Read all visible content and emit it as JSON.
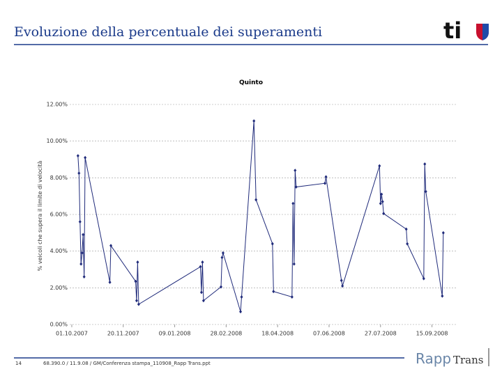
{
  "slide": {
    "title": "Evoluzione della percentuale dei superamenti",
    "logo": "ti",
    "page_number": "14",
    "footer": "68.390.0 / 11.9.08 / GM/Conferenza stampa_110908_Rapp Trans.ppt",
    "brand": [
      "Rapp",
      "Trans"
    ]
  },
  "chart_data": {
    "type": "line",
    "title": "Quinto",
    "y_label": "% veicoli che supera il limite di velocità",
    "x": [
      "2007-10-07",
      "2007-10-08",
      "2007-10-09",
      "2007-10-10",
      "2007-10-11",
      "2007-10-12",
      "2007-10-13",
      "2007-10-14",
      "2007-11-07",
      "2007-11-08",
      "2007-12-02",
      "2007-12-03",
      "2007-12-04",
      "2007-12-05",
      "2008-02-03",
      "2008-02-04",
      "2008-02-05",
      "2008-02-06",
      "2008-02-23",
      "2008-02-24",
      "2008-02-25",
      "2008-03-13",
      "2008-03-14",
      "2008-03-26",
      "2008-03-28",
      "2008-04-13",
      "2008-04-14",
      "2008-05-02",
      "2008-05-03",
      "2008-05-04",
      "2008-05-05",
      "2008-05-06",
      "2008-06-03",
      "2008-06-04",
      "2008-06-19",
      "2008-06-20",
      "2008-07-26",
      "2008-07-27",
      "2008-07-28",
      "2008-07-29",
      "2008-07-30",
      "2008-08-21",
      "2008-08-22",
      "2008-09-07",
      "2008-09-08",
      "2008-09-09",
      "2008-09-25",
      "2008-09-26"
    ],
    "series": [
      {
        "name": "Quinto",
        "color": "#1f2a7a",
        "values": [
          9.2,
          8.25,
          5.6,
          3.3,
          3.9,
          4.9,
          2.6,
          9.1,
          2.3,
          4.3,
          2.35,
          1.3,
          3.4,
          1.1,
          3.15,
          1.75,
          3.4,
          1.3,
          2.05,
          3.65,
          3.9,
          0.7,
          1.5,
          11.1,
          6.8,
          4.4,
          1.8,
          1.5,
          6.6,
          3.3,
          8.4,
          7.5,
          7.7,
          8.05,
          2.4,
          2.1,
          8.65,
          6.6,
          7.1,
          6.7,
          6.05,
          5.2,
          4.4,
          2.5,
          8.75,
          7.25,
          1.55,
          5.0
        ]
      }
    ],
    "xlim": [
      "2007-09-29",
      "2008-10-09"
    ],
    "xticks": [
      {
        "value": "2007-10-01",
        "label": "01.10.2007"
      },
      {
        "value": "2007-11-20",
        "label": "20.11.2007"
      },
      {
        "value": "2008-01-09",
        "label": "09.01.2008"
      },
      {
        "value": "2008-02-28",
        "label": "28.02.2008"
      },
      {
        "value": "2008-04-18",
        "label": "18.04.2008"
      },
      {
        "value": "2008-06-07",
        "label": "07.06.2008"
      },
      {
        "value": "2008-07-27",
        "label": "27.07.2008"
      },
      {
        "value": "2008-09-15",
        "label": "15.09.2008"
      }
    ],
    "ylim": [
      0,
      12
    ],
    "yticks": [
      {
        "value": 0,
        "label": "0.00%"
      },
      {
        "value": 2,
        "label": "2.00%"
      },
      {
        "value": 4,
        "label": "4.00%"
      },
      {
        "value": 6,
        "label": "6.00%"
      },
      {
        "value": 8,
        "label": "8.00%"
      },
      {
        "value": 10,
        "label": "10.00%"
      },
      {
        "value": 12,
        "label": "12.00%"
      }
    ],
    "grid": true
  }
}
